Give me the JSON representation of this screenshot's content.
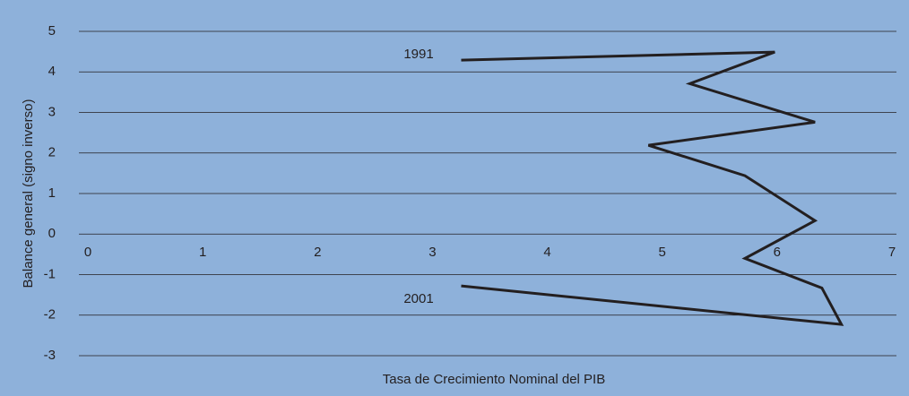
{
  "chart_data": {
    "type": "line",
    "xlabel": "Tasa de Crecimiento Nominal del PIB",
    "ylabel": "Balance general (signo inverso)",
    "x": [
      3.25,
      5.98,
      5.24,
      6.33,
      4.88,
      5.72,
      6.33,
      5.72,
      6.39,
      6.56,
      3.25
    ],
    "series": [
      {
        "color": "#231f20",
        "values": [
          4.29,
          4.49,
          3.71,
          2.76,
          2.19,
          1.44,
          0.33,
          -0.6,
          -1.33,
          -2.23,
          -1.28
        ]
      }
    ],
    "xlim": [
      0,
      7
    ],
    "xticks": [
      0,
      1,
      2,
      3,
      4,
      5,
      6,
      7
    ],
    "ylim": [
      -3,
      5
    ],
    "yticks": [
      -3,
      -2,
      -1,
      0,
      1,
      2,
      3,
      4,
      5
    ],
    "grid": true,
    "background": "#8eb1da",
    "annotations": [
      "1991",
      "2001"
    ]
  }
}
